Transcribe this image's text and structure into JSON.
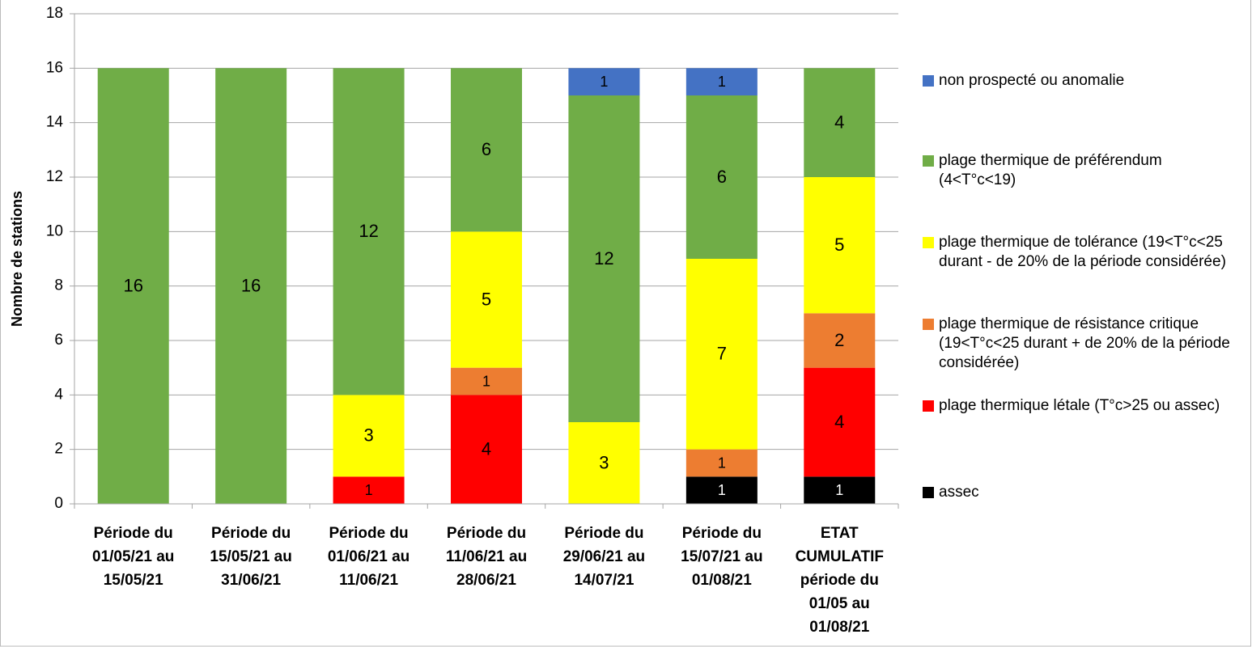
{
  "chart_data": {
    "type": "stacked_bar",
    "y_label": "Nombre de stations",
    "categories": [
      [
        "Période du",
        "01/05/21 au",
        "15/05/21"
      ],
      [
        "Période du",
        "15/05/21 au",
        "31/06/21"
      ],
      [
        "Période du",
        "01/06/21 au",
        "11/06/21"
      ],
      [
        "Période du",
        "11/06/21 au",
        "28/06/21"
      ],
      [
        "Période du",
        "29/06/21 au",
        "14/07/21"
      ],
      [
        "Période du",
        "15/07/21 au",
        "01/08/21"
      ],
      [
        "ETAT",
        "CUMULATIF",
        "période du",
        "01/05 au",
        "01/08/21"
      ]
    ],
    "series": [
      {
        "name": "assec",
        "color": "#000000",
        "values": [
          null,
          null,
          null,
          null,
          null,
          1,
          1
        ]
      },
      {
        "name": "plage thermique létale (T°c>25 ou assec)",
        "color": "#ff0000",
        "values": [
          null,
          null,
          1,
          4,
          null,
          null,
          4
        ]
      },
      {
        "name": "plage thermique de résistance critique (19<T°c<25 durant + de 20% de la période considérée)",
        "color": "#ed7d31",
        "values": [
          null,
          null,
          null,
          1,
          null,
          1,
          2
        ]
      },
      {
        "name": "plage  thermique de tolérance (19<T°c<25 durant - de 20% de la période considérée)",
        "color": "#ffff00",
        "values": [
          null,
          null,
          3,
          5,
          3,
          7,
          5
        ]
      },
      {
        "name": "plage thermique de préférendum (4<T°c<19)",
        "color": "#70ad47",
        "values": [
          16,
          16,
          12,
          6,
          12,
          6,
          4
        ]
      },
      {
        "name": "non prospecté ou anomalie",
        "color": "#4472c4",
        "values": [
          null,
          null,
          null,
          null,
          1,
          1,
          null
        ]
      }
    ],
    "ylim": [
      0,
      18
    ],
    "yticks": [
      0,
      2,
      4,
      6,
      8,
      10,
      12,
      14,
      16,
      18
    ],
    "grid": true
  }
}
